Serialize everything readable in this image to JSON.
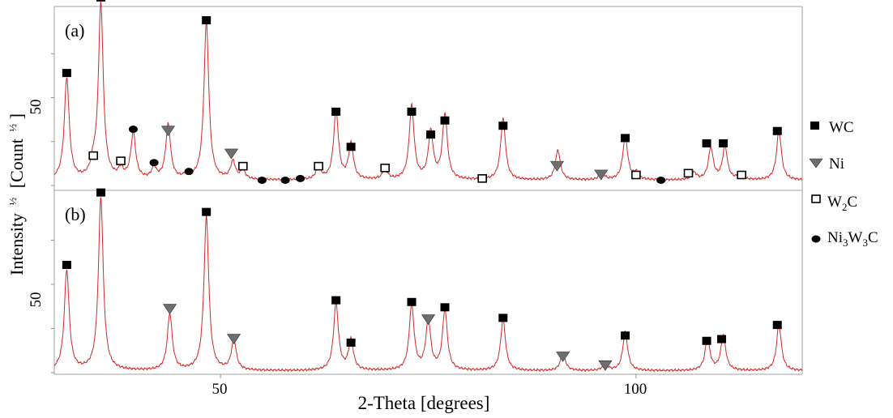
{
  "chart_data": {
    "type": "line",
    "xlabel": "2-Theta [degrees]",
    "ylabel_main": "Intensity",
    "ylabel_sup": "½",
    "ylabel_bracket": "[Count",
    "ylabel_sup2": "½",
    "ylabel_close": "]",
    "xlim": [
      30,
      120
    ],
    "x_ticks": [
      50,
      100
    ],
    "y_tick_label": "50",
    "legend": [
      {
        "id": "wc",
        "label": "WC",
        "marker": "filled-square"
      },
      {
        "id": "ni",
        "label": "Ni",
        "marker": "triangle"
      },
      {
        "id": "w2c",
        "label": "W",
        "sub": "2",
        "suffix": "C",
        "marker": "open-square"
      },
      {
        "id": "ni3w3c",
        "label": "Ni",
        "sub": "3",
        "mid": "W",
        "sub2": "3",
        "suffix": "C",
        "marker": "ellipse"
      }
    ],
    "panels": [
      {
        "label": "(a)",
        "ylim": [
          0,
          100
        ],
        "y_tick": 50,
        "background": 3,
        "peaks": [
          {
            "x": 31.5,
            "h": 58
          },
          {
            "x": 34.7,
            "h": 7
          },
          {
            "x": 35.6,
            "h": 100
          },
          {
            "x": 38.0,
            "h": 5
          },
          {
            "x": 39.5,
            "h": 26
          },
          {
            "x": 42.0,
            "h": 6
          },
          {
            "x": 43.7,
            "h": 31
          },
          {
            "x": 46.0,
            "h": 3
          },
          {
            "x": 48.3,
            "h": 90
          },
          {
            "x": 51.5,
            "h": 10
          },
          {
            "x": 52.7,
            "h": 5
          },
          {
            "x": 61.8,
            "h": 7
          },
          {
            "x": 63.9,
            "h": 39
          },
          {
            "x": 65.7,
            "h": 20
          },
          {
            "x": 69.8,
            "h": 6
          },
          {
            "x": 73.0,
            "h": 42
          },
          {
            "x": 75.3,
            "h": 27
          },
          {
            "x": 77.0,
            "h": 37
          },
          {
            "x": 84.0,
            "h": 35
          },
          {
            "x": 90.6,
            "h": 17
          },
          {
            "x": 95.9,
            "h": 4
          },
          {
            "x": 98.7,
            "h": 25
          },
          {
            "x": 100.0,
            "h": 4
          },
          {
            "x": 107.0,
            "h": 4
          },
          {
            "x": 109.0,
            "h": 18
          },
          {
            "x": 110.7,
            "h": 19
          },
          {
            "x": 112.5,
            "h": 3
          },
          {
            "x": 117.2,
            "h": 28
          }
        ],
        "markers": [
          {
            "type": "wc",
            "x": 31.5,
            "h": 64
          },
          {
            "type": "wc",
            "x": 35.6,
            "h": 107
          },
          {
            "type": "wc",
            "x": 48.3,
            "h": 94
          },
          {
            "type": "wc",
            "x": 63.9,
            "h": 42
          },
          {
            "type": "wc",
            "x": 65.7,
            "h": 22
          },
          {
            "type": "wc",
            "x": 73.0,
            "h": 42
          },
          {
            "type": "wc",
            "x": 75.3,
            "h": 29
          },
          {
            "type": "wc",
            "x": 77.0,
            "h": 37
          },
          {
            "type": "wc",
            "x": 84.0,
            "h": 34
          },
          {
            "type": "wc",
            "x": 98.7,
            "h": 27
          },
          {
            "type": "wc",
            "x": 108.5,
            "h": 24
          },
          {
            "type": "wc",
            "x": 110.5,
            "h": 24
          },
          {
            "type": "wc",
            "x": 117.0,
            "h": 31
          },
          {
            "type": "ni",
            "x": 43.7,
            "h": 31
          },
          {
            "type": "ni",
            "x": 51.3,
            "h": 18
          },
          {
            "type": "ni",
            "x": 90.5,
            "h": 11
          },
          {
            "type": "ni",
            "x": 95.8,
            "h": 6
          },
          {
            "type": "w2c",
            "x": 34.7,
            "h": 17
          },
          {
            "type": "w2c",
            "x": 38.0,
            "h": 14
          },
          {
            "type": "w2c",
            "x": 52.7,
            "h": 11
          },
          {
            "type": "w2c",
            "x": 61.8,
            "h": 11
          },
          {
            "type": "w2c",
            "x": 69.8,
            "h": 10
          },
          {
            "type": "w2c",
            "x": 81.5,
            "h": 4
          },
          {
            "type": "w2c",
            "x": 100.0,
            "h": 6
          },
          {
            "type": "w2c",
            "x": 106.3,
            "h": 7
          },
          {
            "type": "w2c",
            "x": 112.7,
            "h": 6
          },
          {
            "type": "ni3w3c",
            "x": 39.5,
            "h": 32
          },
          {
            "type": "ni3w3c",
            "x": 42.0,
            "h": 13
          },
          {
            "type": "ni3w3c",
            "x": 46.2,
            "h": 8
          },
          {
            "type": "ni3w3c",
            "x": 55.0,
            "h": 3
          },
          {
            "type": "ni3w3c",
            "x": 57.8,
            "h": 3
          },
          {
            "type": "ni3w3c",
            "x": 59.6,
            "h": 4
          },
          {
            "type": "ni3w3c",
            "x": 103.0,
            "h": 3
          }
        ]
      },
      {
        "label": "(b)",
        "ylim": [
          0,
          100
        ],
        "y_tick": 50,
        "background": 1,
        "peaks": [
          {
            "x": 31.5,
            "h": 57
          },
          {
            "x": 35.6,
            "h": 98
          },
          {
            "x": 43.9,
            "h": 32
          },
          {
            "x": 48.3,
            "h": 87
          },
          {
            "x": 51.6,
            "h": 17
          },
          {
            "x": 63.9,
            "h": 38
          },
          {
            "x": 65.7,
            "h": 17
          },
          {
            "x": 73.0,
            "h": 37
          },
          {
            "x": 75.0,
            "h": 28
          },
          {
            "x": 77.0,
            "h": 34
          },
          {
            "x": 84.0,
            "h": 29
          },
          {
            "x": 91.2,
            "h": 10
          },
          {
            "x": 96.3,
            "h": 4
          },
          {
            "x": 98.7,
            "h": 22
          },
          {
            "x": 108.6,
            "h": 18
          },
          {
            "x": 110.5,
            "h": 20
          },
          {
            "x": 117.2,
            "h": 26
          }
        ],
        "markers": [
          {
            "type": "wc",
            "x": 31.5,
            "h": 61
          },
          {
            "type": "wc",
            "x": 35.6,
            "h": 102
          },
          {
            "type": "wc",
            "x": 48.3,
            "h": 91
          },
          {
            "type": "wc",
            "x": 63.9,
            "h": 41
          },
          {
            "type": "wc",
            "x": 65.7,
            "h": 17
          },
          {
            "type": "wc",
            "x": 73.0,
            "h": 40
          },
          {
            "type": "wc",
            "x": 77.0,
            "h": 37
          },
          {
            "type": "wc",
            "x": 84.0,
            "h": 31
          },
          {
            "type": "wc",
            "x": 98.7,
            "h": 21
          },
          {
            "type": "wc",
            "x": 108.5,
            "h": 18
          },
          {
            "type": "wc",
            "x": 110.3,
            "h": 19
          },
          {
            "type": "wc",
            "x": 117.0,
            "h": 27
          },
          {
            "type": "ni",
            "x": 43.9,
            "h": 36
          },
          {
            "type": "ni",
            "x": 51.6,
            "h": 19
          },
          {
            "type": "ni",
            "x": 75.0,
            "h": 30
          },
          {
            "type": "ni",
            "x": 91.2,
            "h": 9
          },
          {
            "type": "ni",
            "x": 96.3,
            "h": 4
          }
        ]
      }
    ],
    "colors": {
      "trace": "#d22a2a",
      "marker": "#000000",
      "triangle": "#6e6e6e",
      "axis": "#a0a0a0"
    }
  }
}
